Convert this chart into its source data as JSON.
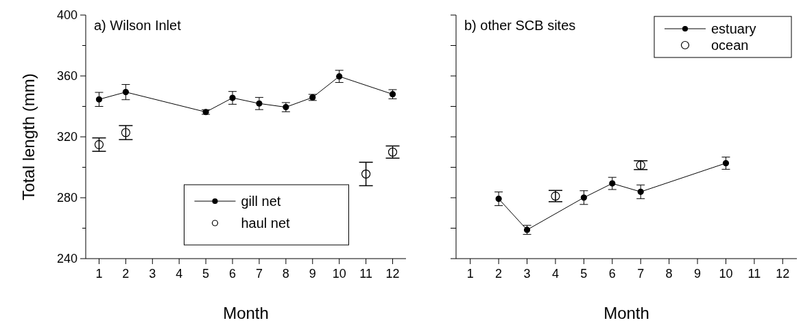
{
  "chart_data": [
    {
      "type": "line",
      "title": "a) Wilson Inlet",
      "xlabel": "Month",
      "ylabel": "Total length (mm)",
      "xlim": [
        0.5,
        12.5
      ],
      "xticks": [
        1,
        2,
        3,
        4,
        5,
        6,
        7,
        8,
        9,
        10,
        11,
        12
      ],
      "ylim": [
        240,
        400
      ],
      "yticks": [
        240,
        {
          "value": 260,
          "label": null
        },
        280,
        {
          "value": 300,
          "label": null
        },
        320,
        {
          "value": 340,
          "label": null
        },
        360,
        {
          "value": 380,
          "label": null
        },
        400
      ],
      "grid": false,
      "legend": "bottom",
      "marker": "circle",
      "series": [
        {
          "name": "gill net",
          "color": "#000000",
          "x": [
            1,
            2,
            5,
            6,
            7,
            8,
            9,
            10,
            12
          ],
          "values": [
            344.6,
            349.4,
            336.3,
            345.6,
            341.9,
            339.5,
            345.9,
            359.7,
            348
          ],
          "errors": [
            4.6,
            5,
            1.5,
            4.2,
            4,
            3,
            2,
            4,
            3
          ]
        },
        {
          "name": "haul net",
          "type": "scatter",
          "color": "#000000",
          "x": [
            1,
            2,
            11,
            12
          ],
          "values": [
            314.9,
            322.8,
            295.6,
            310
          ],
          "errors": [
            4.4,
            4.6,
            7.7,
            4
          ]
        }
      ]
    },
    {
      "type": "line",
      "title": "b) other SCB sites",
      "xlabel": "Month",
      "xlim": [
        0.5,
        12.5
      ],
      "xticks": [
        1,
        2,
        3,
        4,
        5,
        6,
        7,
        8,
        9,
        10,
        11,
        12
      ],
      "ylim": [
        240,
        400
      ],
      "yticks": [
        {
          "value": 240,
          "label": null
        },
        {
          "value": 260,
          "label": null
        },
        {
          "value": 280,
          "label": null
        },
        {
          "value": 300,
          "label": null
        },
        {
          "value": 320,
          "label": null
        },
        {
          "value": 340,
          "label": null
        },
        {
          "value": 360,
          "label": null
        },
        {
          "value": 380,
          "label": null
        },
        {
          "value": 400,
          "label": null
        }
      ],
      "tick_labels": "x",
      "grid": false,
      "legend": "top right",
      "marker": "circle",
      "series": [
        {
          "name": "estuary",
          "color": "#000000",
          "x": [
            2,
            3,
            5,
            6,
            7,
            10
          ],
          "values": [
            279.3,
            258.9,
            280.1,
            289.4,
            283.9,
            302.7
          ],
          "errors": [
            4.5,
            3,
            4.5,
            4,
            4.5,
            4
          ]
        },
        {
          "name": "ocean",
          "type": "scatter",
          "color": "#000000",
          "x": [
            4,
            7
          ],
          "values": [
            281.1,
            301.4
          ],
          "errors": [
            3.7,
            2.9
          ]
        }
      ]
    }
  ]
}
